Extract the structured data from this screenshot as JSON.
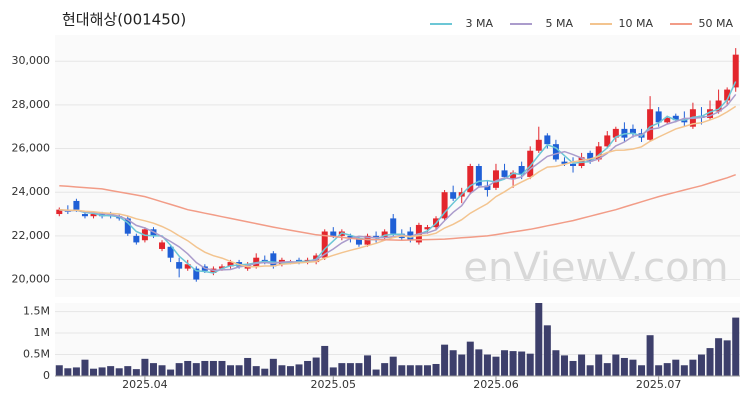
{
  "chart_data": [
    {
      "type": "candlestick",
      "title": "현대해상(001450)",
      "watermark": "enViewV.com",
      "up_color": "#e3262d",
      "down_color": "#1f5fd6",
      "open": [
        23000,
        23200,
        23600,
        23000,
        22900,
        23000,
        23000,
        22900,
        22800,
        22000,
        21800,
        22300,
        21400,
        21500,
        20800,
        20500,
        20500,
        20600,
        20300,
        20500,
        20600,
        20800,
        20500,
        20600,
        20900,
        21200,
        20700,
        20800,
        20900,
        20800,
        20800,
        21000,
        22200,
        22000,
        22000,
        21900,
        21600,
        22000,
        21900,
        22800,
        22100,
        22200,
        21700,
        22300,
        22400,
        22800,
        24000,
        23800,
        24000,
        25200,
        24300,
        24200,
        25000,
        24600,
        25200,
        24700,
        25900,
        26600,
        26200,
        25400,
        25300,
        25200,
        25800,
        25500,
        26100,
        26500,
        26900,
        26900,
        26700,
        26400,
        27700,
        27200,
        27500,
        27300,
        27000,
        27500,
        27400,
        27700,
        28200,
        28800
      ],
      "high": [
        23300,
        23400,
        23700,
        23100,
        23100,
        23100,
        23100,
        23000,
        22900,
        22100,
        22400,
        22400,
        21800,
        21600,
        21000,
        20900,
        20600,
        20700,
        20600,
        20700,
        20900,
        20900,
        20800,
        21200,
        21100,
        21300,
        21000,
        20900,
        21000,
        21000,
        21200,
        22300,
        22400,
        22300,
        22100,
        22000,
        22100,
        22200,
        22300,
        23000,
        22300,
        22400,
        22600,
        22500,
        22900,
        24100,
        24300,
        24200,
        25300,
        25300,
        24500,
        25300,
        25300,
        25000,
        25400,
        26100,
        27000,
        26700,
        26400,
        25600,
        25600,
        25800,
        25900,
        26300,
        26800,
        27000,
        27200,
        27100,
        26900,
        28400,
        27900,
        27500,
        27600,
        27700,
        28100,
        27900,
        28200,
        28700,
        28800,
        30600
      ],
      "low": [
        22900,
        23000,
        23100,
        22800,
        22800,
        22800,
        22800,
        22700,
        22000,
        21600,
        21700,
        21900,
        21300,
        20800,
        20100,
        20400,
        19900,
        20300,
        20200,
        20400,
        20500,
        20500,
        20400,
        20500,
        20700,
        20500,
        20600,
        20700,
        20700,
        20700,
        20700,
        20900,
        21900,
        21800,
        21700,
        21500,
        21500,
        21700,
        21800,
        22000,
        21800,
        21700,
        21600,
        22100,
        22300,
        22700,
        23600,
        23500,
        23900,
        24200,
        23800,
        24100,
        24600,
        24200,
        24600,
        24600,
        25800,
        26000,
        25400,
        25200,
        24900,
        25100,
        25300,
        25400,
        26000,
        26300,
        26300,
        26500,
        26300,
        26300,
        27000,
        27100,
        27200,
        27000,
        26900,
        27100,
        27300,
        27600,
        28000,
        28600
      ],
      "close": [
        23200,
        23100,
        23200,
        22900,
        23000,
        22900,
        22900,
        22800,
        22100,
        21700,
        22300,
        22000,
        21700,
        21000,
        20500,
        20700,
        20000,
        20400,
        20500,
        20600,
        20800,
        20600,
        20700,
        21000,
        20800,
        20600,
        20900,
        20800,
        20800,
        20900,
        21100,
        22200,
        22000,
        22200,
        21900,
        21600,
        22000,
        21900,
        22200,
        22100,
        21900,
        21800,
        22500,
        22400,
        22800,
        24000,
        23700,
        24000,
        25200,
        24300,
        24100,
        25000,
        24700,
        24900,
        24800,
        25900,
        26400,
        26200,
        25500,
        25300,
        25200,
        25600,
        25400,
        26100,
        26600,
        26900,
        26500,
        26700,
        26500,
        27800,
        27200,
        27400,
        27300,
        27200,
        27800,
        27400,
        27800,
        28200,
        28700,
        30300
      ],
      "series": [
        {
          "name": "3 MA",
          "color": "#6cc7d6",
          "values": [
            23200,
            23150,
            23170,
            23070,
            23030,
            22930,
            22930,
            22870,
            22600,
            22200,
            22030,
            22000,
            22000,
            21570,
            21070,
            20730,
            20400,
            20370,
            20300,
            20500,
            20630,
            20670,
            20700,
            20770,
            20830,
            20800,
            20770,
            20770,
            20830,
            20830,
            20930,
            21400,
            21770,
            22130,
            22030,
            21900,
            21830,
            21830,
            22030,
            22070,
            22070,
            21930,
            22070,
            22230,
            22570,
            23070,
            23500,
            23900,
            24300,
            24500,
            24530,
            24470,
            24600,
            24870,
            24800,
            25200,
            25700,
            26170,
            26030,
            25670,
            25330,
            25370,
            25400,
            25700,
            26030,
            26530,
            26670,
            26700,
            26570,
            27000,
            27170,
            27470,
            27300,
            27300,
            27430,
            27470,
            27670,
            27800,
            28230,
            29070
          ]
        },
        {
          "name": "5 MA",
          "color": "#ab9ccc",
          "values": [
            23200,
            23150,
            23170,
            23100,
            23080,
            23020,
            22980,
            22900,
            22740,
            22480,
            22360,
            22180,
            21960,
            21740,
            21500,
            21180,
            20780,
            20520,
            20420,
            20440,
            20460,
            20580,
            20640,
            20740,
            20780,
            20740,
            20800,
            20820,
            20780,
            20800,
            20900,
            21160,
            21400,
            21680,
            21880,
            21980,
            21940,
            21920,
            21920,
            21960,
            22020,
            21980,
            22100,
            22140,
            22280,
            22700,
            23080,
            23380,
            23940,
            24240,
            24260,
            24520,
            24660,
            24600,
            24700,
            25060,
            25340,
            25640,
            25760,
            25860,
            25720,
            25560,
            25400,
            25520,
            25780,
            26120,
            26300,
            26560,
            26640,
            26880,
            26940,
            27120,
            27240,
            27380,
            27380,
            27420,
            27500,
            27680,
            27980,
            28480
          ]
        },
        {
          "name": "10 MA",
          "color": "#f3c48f",
          "values": [
            23200,
            23180,
            23170,
            23130,
            23100,
            23060,
            23030,
            23000,
            22910,
            22780,
            22690,
            22580,
            22430,
            22240,
            22000,
            21780,
            21490,
            21250,
            21090,
            20980,
            20830,
            20690,
            20590,
            20590,
            20620,
            20620,
            20700,
            20730,
            20760,
            20790,
            20820,
            20980,
            21110,
            21230,
            21340,
            21440,
            21550,
            21660,
            21800,
            21920,
            22000,
            21960,
            22010,
            22030,
            22120,
            22360,
            22530,
            22740,
            23040,
            23260,
            23480,
            23800,
            24020,
            24270,
            24470,
            24660,
            24930,
            25150,
            25180,
            25280,
            25390,
            25450,
            25520,
            25640,
            25820,
            25920,
            25930,
            25980,
            26080,
            26330,
            26530,
            26710,
            26900,
            27010,
            27130,
            27180,
            27310,
            27460,
            27680,
            27930
          ]
        },
        {
          "name": "50 MA",
          "color": "#f29c87",
          "values": [
            24300,
            24270,
            24240,
            24210,
            24180,
            24150,
            24080,
            24010,
            23940,
            23870,
            23800,
            23680,
            23560,
            23440,
            23320,
            23200,
            23120,
            23040,
            22960,
            22880,
            22800,
            22720,
            22640,
            22560,
            22480,
            22400,
            22330,
            22260,
            22190,
            22120,
            22050,
            22010,
            21970,
            21930,
            21890,
            21850,
            21840,
            21830,
            21820,
            21810,
            21800,
            21810,
            21820,
            21830,
            21840,
            21850,
            21880,
            21910,
            21940,
            21970,
            22000,
            22060,
            22120,
            22180,
            22240,
            22300,
            22380,
            22460,
            22540,
            22620,
            22700,
            22800,
            22900,
            23000,
            23100,
            23200,
            23320,
            23440,
            23560,
            23680,
            23800,
            23900,
            24000,
            24100,
            24200,
            24300,
            24420,
            24540,
            24660,
            24800
          ]
        }
      ],
      "ylim": [
        19200,
        31200
      ],
      "yticks": [
        {
          "value": 20000,
          "label": "20,000"
        },
        {
          "value": 22000,
          "label": "22,000"
        },
        {
          "value": 24000,
          "label": "24,000"
        },
        {
          "value": 26000,
          "label": "26,000"
        },
        {
          "value": 28000,
          "label": "28,000"
        },
        {
          "value": 30000,
          "label": "30,000"
        }
      ],
      "grid": true,
      "legend": "top-right"
    },
    {
      "type": "bar",
      "color": "#3d3f6b",
      "categories": [
        null,
        null,
        null,
        null,
        null,
        null,
        null,
        null,
        null,
        null,
        "2025.04",
        null,
        null,
        null,
        null,
        null,
        null,
        null,
        null,
        null,
        null,
        null,
        null,
        null,
        null,
        null,
        null,
        null,
        null,
        null,
        null,
        null,
        "2025.05",
        null,
        null,
        null,
        null,
        null,
        null,
        null,
        null,
        null,
        null,
        null,
        null,
        null,
        null,
        null,
        null,
        null,
        null,
        "2025.06",
        null,
        null,
        null,
        null,
        null,
        null,
        null,
        null,
        null,
        null,
        null,
        null,
        null,
        null,
        null,
        null,
        null,
        null,
        "2025.07",
        null,
        null,
        null,
        null,
        null,
        null,
        null,
        null,
        null
      ],
      "values": [
        250000,
        180000,
        200000,
        380000,
        170000,
        200000,
        230000,
        180000,
        230000,
        160000,
        400000,
        300000,
        250000,
        150000,
        300000,
        350000,
        300000,
        350000,
        350000,
        350000,
        250000,
        250000,
        420000,
        230000,
        170000,
        400000,
        250000,
        230000,
        270000,
        350000,
        430000,
        700000,
        200000,
        300000,
        300000,
        300000,
        480000,
        150000,
        300000,
        450000,
        250000,
        250000,
        250000,
        250000,
        280000,
        730000,
        600000,
        500000,
        800000,
        620000,
        500000,
        450000,
        600000,
        580000,
        570000,
        520000,
        1700000,
        1180000,
        600000,
        480000,
        350000,
        500000,
        250000,
        500000,
        300000,
        500000,
        420000,
        380000,
        250000,
        950000,
        250000,
        300000,
        380000,
        250000,
        380000,
        500000,
        650000,
        880000,
        830000,
        1360000
      ],
      "ylim": [
        0,
        1700000
      ],
      "yticks": [
        0,
        {
          "value": 500000,
          "label": "0.5M"
        },
        {
          "value": 1000000,
          "label": "1M"
        },
        {
          "value": 1500000,
          "label": "1.5M"
        }
      ],
      "grid": true
    }
  ]
}
